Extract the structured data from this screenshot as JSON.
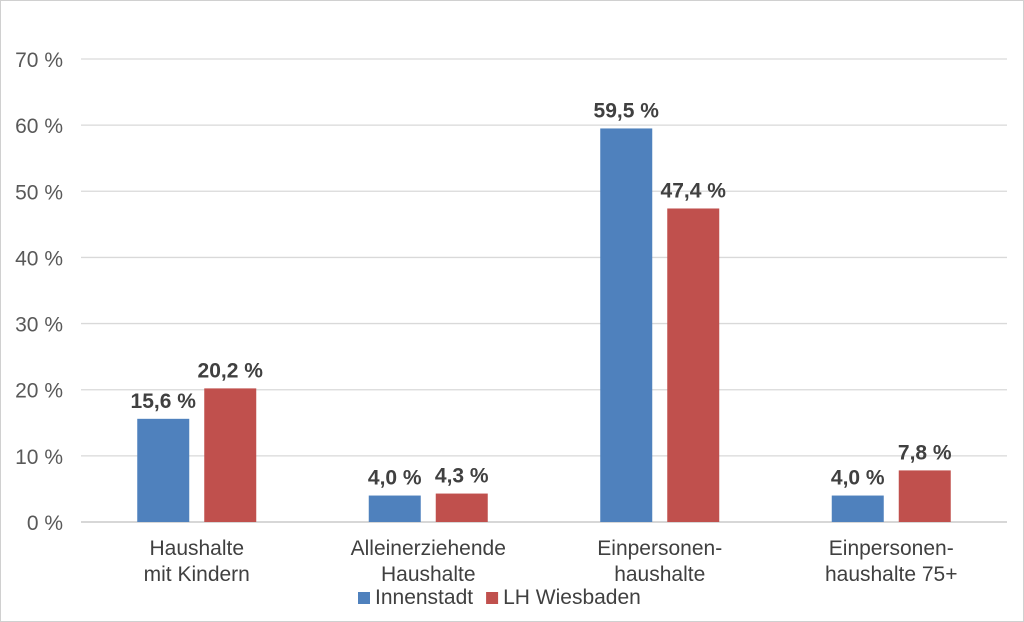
{
  "chart_data": {
    "type": "bar",
    "categories": [
      [
        "Haushalte",
        "mit Kindern"
      ],
      [
        "Alleinerziehende",
        "Haushalte"
      ],
      [
        "Einpersonen-",
        "haushalte"
      ],
      [
        "Einpersonen-",
        "haushalte 75+"
      ]
    ],
    "series": [
      {
        "name": "Innenstadt",
        "color": "#4f81bd",
        "values": [
          15.6,
          4.0,
          59.5,
          4.0
        ],
        "labels": [
          "15,6 %",
          "4,0 %",
          "59,5 %",
          "4,0 %"
        ]
      },
      {
        "name": "LH Wiesbaden",
        "color": "#c0504d",
        "values": [
          20.2,
          4.3,
          47.4,
          7.8
        ],
        "labels": [
          "20,2 %",
          "4,3 %",
          "47,4 %",
          "7,8 %"
        ]
      }
    ],
    "ylim": [
      0,
      70
    ],
    "yticks": [
      0,
      10,
      20,
      30,
      40,
      50,
      60,
      70
    ],
    "ytick_labels": [
      "0 %",
      "10 %",
      "20 %",
      "30 %",
      "40 %",
      "50 %",
      "60 %",
      "70 %"
    ],
    "grid": true,
    "legend_position": "bottom"
  }
}
